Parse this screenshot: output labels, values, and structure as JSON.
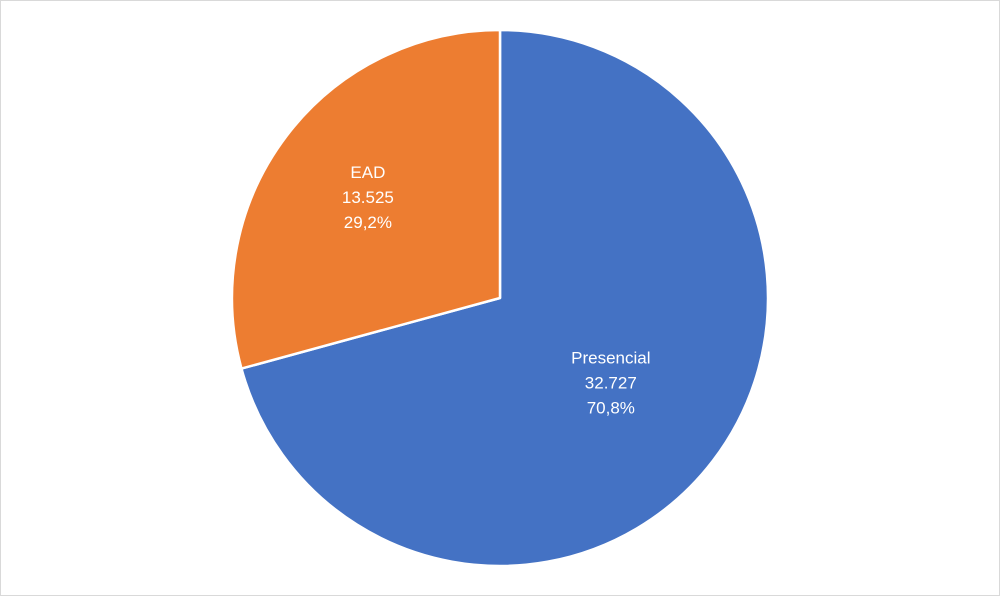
{
  "chart_data": {
    "type": "pie",
    "title": "",
    "slices": [
      {
        "name": "Presencial",
        "value": 32727,
        "value_label": "32.727",
        "percent_label": "70,8%",
        "color": "#4472C4"
      },
      {
        "name": "EAD",
        "value": 13525,
        "value_label": "13.525",
        "percent_label": "29,2%",
        "color": "#ED7D31"
      }
    ],
    "start_angle": "12 o'clock",
    "direction": "clockwise",
    "legend": "none",
    "slice_border_color": "#FFFFFF"
  }
}
